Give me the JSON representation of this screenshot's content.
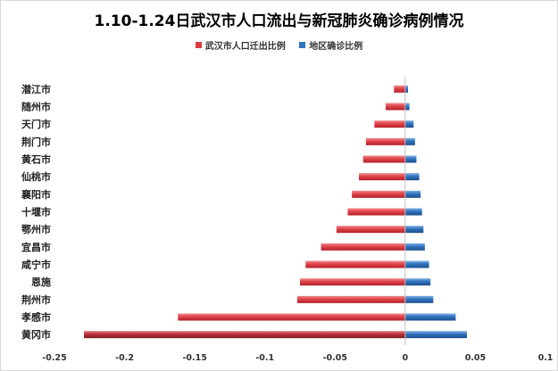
{
  "chart_data": {
    "type": "bar",
    "orientation": "horizontal",
    "title": "1.10-1.24日武汉市人口流出与新冠肺炎确诊病例情况",
    "categories": [
      "潜江市",
      "随州市",
      "天门市",
      "荆门市",
      "黄石市",
      "仙桃市",
      "襄阳市",
      "十堰市",
      "鄂州市",
      "宜昌市",
      "咸宁市",
      "恩施",
      "荆州市",
      "孝感市",
      "黄冈市"
    ],
    "series": [
      {
        "name": "武汉市人口迁出比例",
        "color": "#d9393f",
        "values": [
          -0.008,
          -0.014,
          -0.022,
          -0.028,
          -0.03,
          -0.033,
          -0.038,
          -0.041,
          -0.049,
          -0.06,
          -0.071,
          -0.075,
          -0.077,
          -0.162,
          -0.229
        ]
      },
      {
        "name": "地区确诊比例",
        "color": "#2f72bd",
        "values": [
          0.002,
          0.003,
          0.006,
          0.007,
          0.008,
          0.01,
          0.011,
          0.012,
          0.013,
          0.014,
          0.017,
          0.018,
          0.02,
          0.036,
          0.044
        ]
      }
    ],
    "xlim": [
      -0.25,
      0.1
    ],
    "xticks": [
      -0.25,
      -0.2,
      -0.15,
      -0.1,
      -0.05,
      0,
      0.05,
      0.1
    ],
    "xtick_labels": [
      "-0.25",
      "-0.2",
      "-0.15",
      "-0.1",
      "-0.05",
      "0",
      "0.05",
      "0.1"
    ],
    "legend_position": "top",
    "grid": false
  }
}
